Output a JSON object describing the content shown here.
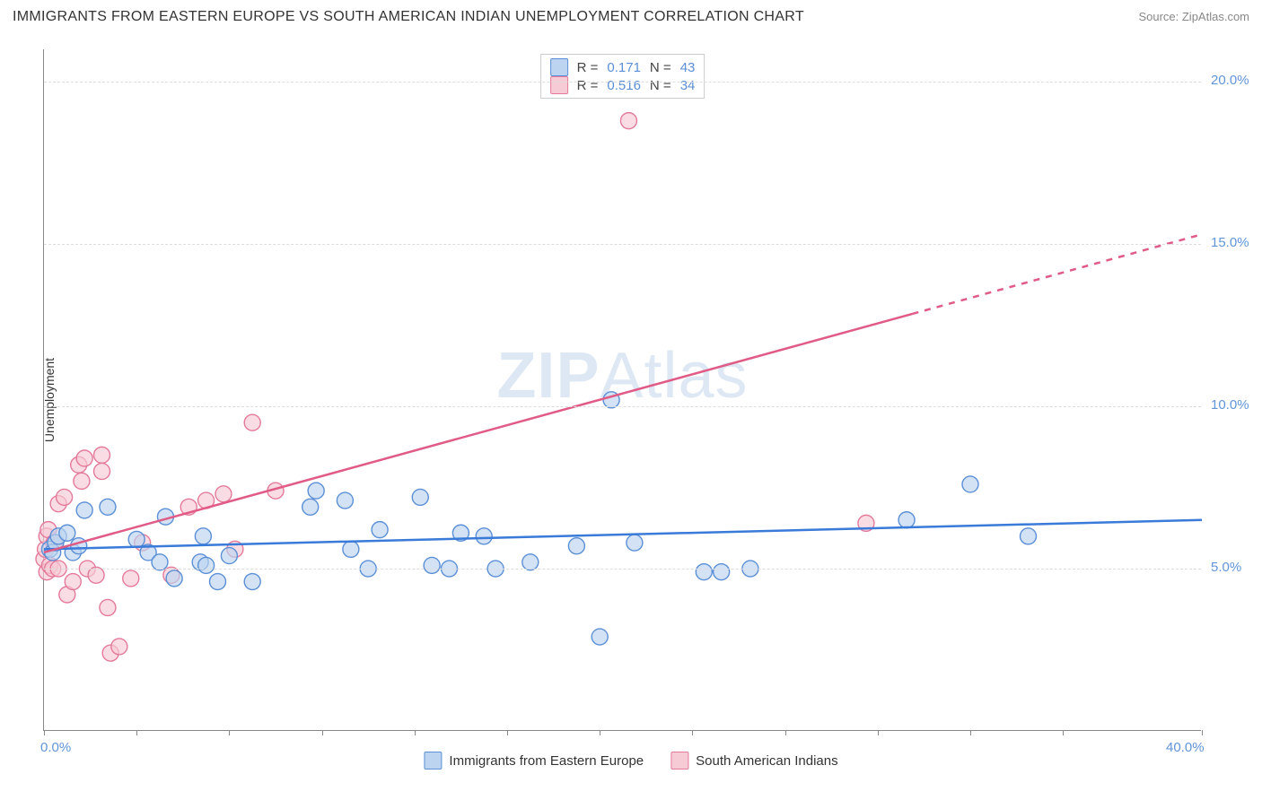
{
  "title": "IMMIGRANTS FROM EASTERN EUROPE VS SOUTH AMERICAN INDIAN UNEMPLOYMENT CORRELATION CHART",
  "source": "Source: ZipAtlas.com",
  "y_axis_label": "Unemployment",
  "watermark_bold": "ZIP",
  "watermark_rest": "Atlas",
  "chart": {
    "type": "scatter",
    "x_domain": [
      0,
      40
    ],
    "y_domain": [
      0,
      21
    ],
    "y_ticks": [
      5.0,
      10.0,
      15.0,
      20.0
    ],
    "y_tick_labels": [
      "5.0%",
      "10.0%",
      "15.0%",
      "20.0%"
    ],
    "x_tick_positions": [
      0,
      3.2,
      6.4,
      9.6,
      12.8,
      16,
      19.2,
      22.4,
      25.6,
      28.8,
      32,
      35.2,
      40
    ],
    "x_labels": {
      "start": "0.0%",
      "end": "40.0%"
    },
    "grid_color": "#dddddd",
    "axis_color": "#888888",
    "background": "#ffffff",
    "marker_radius": 9,
    "marker_stroke_width": 1.4,
    "line_width": 2.5,
    "series": [
      {
        "id": "blue",
        "name": "Immigrants from Eastern Europe",
        "marker_fill": "#bcd4f0",
        "marker_stroke": "#5b8fd6",
        "line_color": "#3a7ad9",
        "fill_opacity": 0.65,
        "R": "0.171",
        "N": "43",
        "trend": {
          "x1": 0,
          "y1": 5.6,
          "x2": 40,
          "y2": 6.5,
          "dashed_from": null
        },
        "points": [
          [
            0.2,
            5.6
          ],
          [
            0.3,
            5.5
          ],
          [
            0.4,
            5.8
          ],
          [
            0.5,
            6.0
          ],
          [
            0.8,
            6.1
          ],
          [
            1.0,
            5.5
          ],
          [
            1.2,
            5.7
          ],
          [
            1.4,
            6.8
          ],
          [
            2.2,
            6.9
          ],
          [
            3.2,
            5.9
          ],
          [
            3.6,
            5.5
          ],
          [
            4.0,
            5.2
          ],
          [
            4.2,
            6.6
          ],
          [
            4.5,
            4.7
          ],
          [
            5.4,
            5.2
          ],
          [
            5.5,
            6.0
          ],
          [
            5.6,
            5.1
          ],
          [
            6.0,
            4.6
          ],
          [
            6.4,
            5.4
          ],
          [
            7.2,
            4.6
          ],
          [
            9.2,
            6.9
          ],
          [
            9.4,
            7.4
          ],
          [
            10.4,
            7.1
          ],
          [
            10.6,
            5.6
          ],
          [
            11.2,
            5.0
          ],
          [
            11.6,
            6.2
          ],
          [
            13.0,
            7.2
          ],
          [
            13.4,
            5.1
          ],
          [
            14.0,
            5.0
          ],
          [
            14.4,
            6.1
          ],
          [
            15.2,
            6.0
          ],
          [
            15.6,
            5.0
          ],
          [
            16.8,
            5.2
          ],
          [
            18.4,
            5.7
          ],
          [
            19.2,
            2.9
          ],
          [
            19.6,
            10.2
          ],
          [
            20.4,
            5.8
          ],
          [
            22.8,
            4.9
          ],
          [
            23.4,
            4.9
          ],
          [
            24.4,
            5.0
          ],
          [
            29.8,
            6.5
          ],
          [
            32.0,
            7.6
          ],
          [
            34.0,
            6.0
          ]
        ]
      },
      {
        "id": "pink",
        "name": "South American Indians",
        "marker_fill": "#f7cbd6",
        "marker_stroke": "#e47a9a",
        "line_color": "#e05b85",
        "fill_opacity": 0.65,
        "R": "0.516",
        "N": "34",
        "trend": {
          "x1": 0,
          "y1": 5.5,
          "x2": 40,
          "y2": 15.3,
          "dashed_from": 30
        },
        "points": [
          [
            0.0,
            5.3
          ],
          [
            0.05,
            5.6
          ],
          [
            0.1,
            6.0
          ],
          [
            0.1,
            4.9
          ],
          [
            0.15,
            6.2
          ],
          [
            0.2,
            5.1
          ],
          [
            0.3,
            5.0
          ],
          [
            0.35,
            5.8
          ],
          [
            0.5,
            7.0
          ],
          [
            0.5,
            5.0
          ],
          [
            0.7,
            7.2
          ],
          [
            0.8,
            4.2
          ],
          [
            1.0,
            4.6
          ],
          [
            1.2,
            8.2
          ],
          [
            1.3,
            7.7
          ],
          [
            1.4,
            8.4
          ],
          [
            1.5,
            5.0
          ],
          [
            1.8,
            4.8
          ],
          [
            2.0,
            8.5
          ],
          [
            2.0,
            8.0
          ],
          [
            2.2,
            3.8
          ],
          [
            2.3,
            2.4
          ],
          [
            2.6,
            2.6
          ],
          [
            3.0,
            4.7
          ],
          [
            3.4,
            5.8
          ],
          [
            4.4,
            4.8
          ],
          [
            5.0,
            6.9
          ],
          [
            5.6,
            7.1
          ],
          [
            6.2,
            7.3
          ],
          [
            6.6,
            5.6
          ],
          [
            7.2,
            9.5
          ],
          [
            8.0,
            7.4
          ],
          [
            20.2,
            18.8
          ],
          [
            28.4,
            6.4
          ]
        ]
      }
    ]
  },
  "legend_top": {
    "r_label": "R =",
    "n_label": "N ="
  },
  "legend_bottom": {
    "items": [
      "Immigrants from Eastern Europe",
      "South American Indians"
    ]
  }
}
